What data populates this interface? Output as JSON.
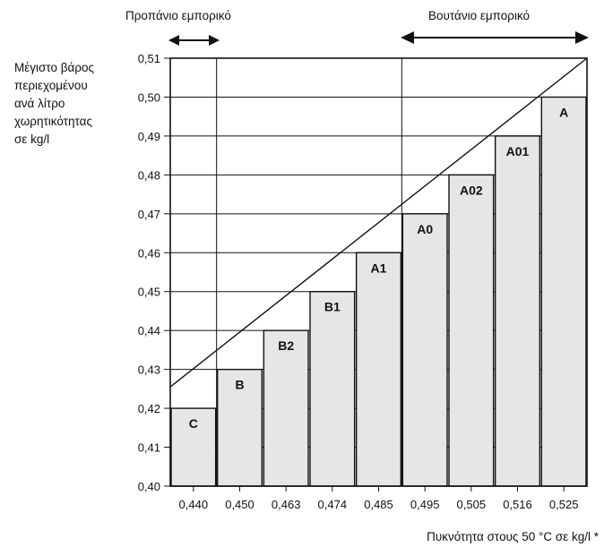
{
  "chart_data": {
    "type": "bar",
    "ylabel_lines": [
      "Μέγιστο βάρος",
      "περιεχομένου",
      "ανά λίτρο",
      "χωρητικότητας",
      "σε kg/l"
    ],
    "xlabel": "Πυκνότητα στους 50 °C σε kg/l *",
    "ylim": [
      0.4,
      0.51
    ],
    "y_ticks": [
      "0,40",
      "0,41",
      "0,42",
      "0,43",
      "0,44",
      "0,45",
      "0,46",
      "0,47",
      "0,48",
      "0,49",
      "0,50",
      "0,51"
    ],
    "categories": [
      "0,440",
      "0,450",
      "0,463",
      "0,474",
      "0,485",
      "0,495",
      "0,505",
      "0,516",
      "0,525"
    ],
    "bar_labels": [
      "C",
      "B",
      "B2",
      "B1",
      "A1",
      "A0",
      "A02",
      "A01",
      "A"
    ],
    "values": [
      0.42,
      0.43,
      0.44,
      0.45,
      0.46,
      0.47,
      0.48,
      0.49,
      0.5
    ],
    "grid": true,
    "annotations": {
      "propane": "Προπάνιο εμπορικό",
      "butane": "Βουτάνιο εμπορικό"
    },
    "colors": {
      "bar_fill": "#e6e6e6",
      "line": "#111111"
    }
  }
}
